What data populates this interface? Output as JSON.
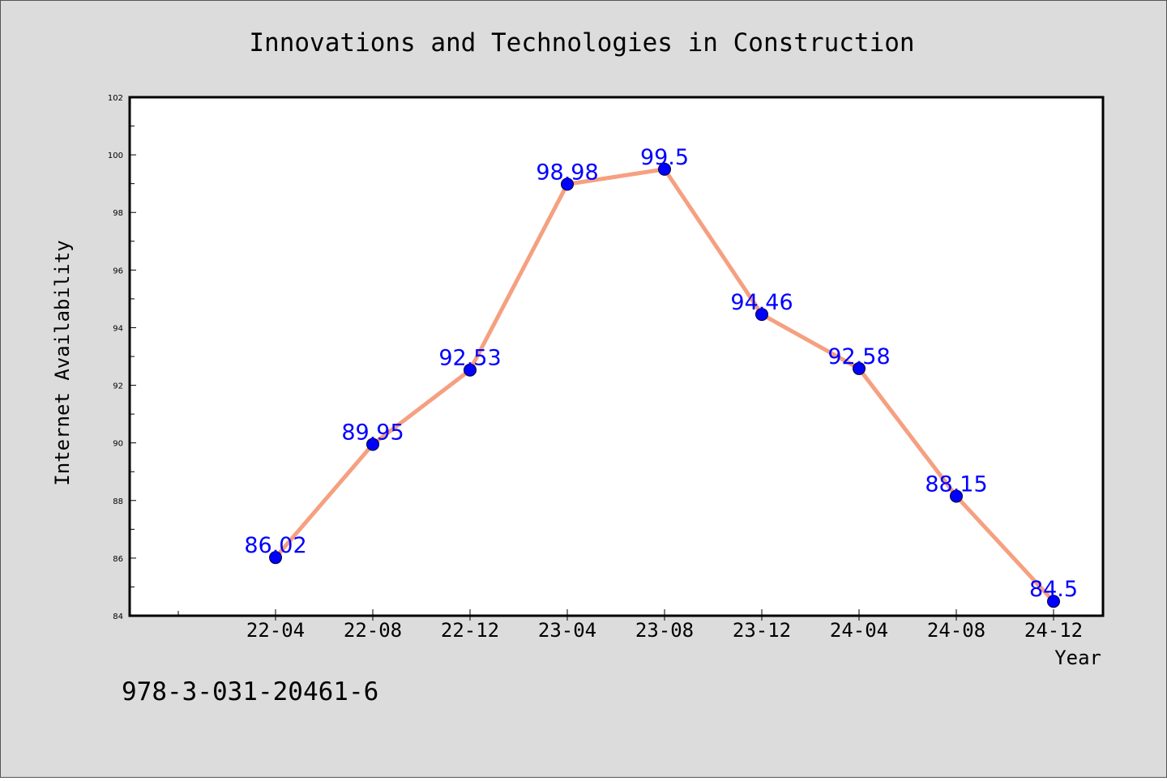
{
  "chart_data": {
    "type": "line",
    "title": "Innovations and Technologies in Construction",
    "xlabel": "Year",
    "ylabel": "Internet Availability",
    "categories": [
      "22-04",
      "22-08",
      "22-12",
      "23-04",
      "23-08",
      "23-12",
      "24-04",
      "24-08",
      "24-12"
    ],
    "series": [
      {
        "values": [
          86.02,
          89.95,
          92.53,
          98.98,
          99.5,
          94.46,
          92.58,
          88.15,
          84.5
        ],
        "labels": [
          "86.02",
          "89.95",
          "92.53",
          "98.98",
          "99.5",
          "94.46",
          "92.58",
          "88.15",
          "84.5"
        ]
      }
    ],
    "ylim": [
      84,
      102
    ],
    "yticks": [
      "84",
      "86",
      "88",
      "90",
      "92",
      "94",
      "96",
      "98",
      "100",
      "102"
    ],
    "grid": false,
    "legend": "none",
    "colors": {
      "line": "#f5a080",
      "marker": "#0000ff",
      "data_label": "#0000ff",
      "plot_background": "#ffffff",
      "figure_background": "#dcdcdc"
    }
  },
  "footnote": "978-3-031-20461-6"
}
